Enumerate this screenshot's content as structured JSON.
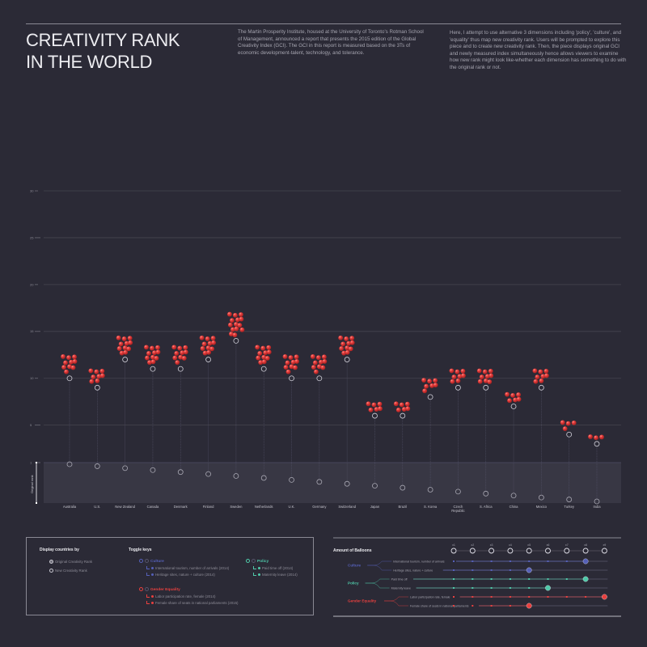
{
  "header": {
    "title_line1": "CREATIVITY RANK",
    "title_line2": "IN THE WORLD",
    "intro_left": "The Martin Prosperity Institute, housed at the University of Toronto's Rotman School of Management, announced a report that presents the 2015 edition of the Global Creativity Index (GCI). The GCI in this report is measured based on the 3Ts of economic development-talent, technology, and tolerance.",
    "intro_right": "Here, I attempt to use alternative 3 dimensions including 'policy', 'culture', and 'equality' thus map new creativity rank. Users will be prompted to explore this piece and to create new creativity rank. Then, the piece displays original GCI and newly measured index simultaneously hence allows viewers to examine how new rank might look like-whether each dimension has something to do with the original rank or not."
  },
  "colors": {
    "background": "#2b2a36",
    "balloon": "#e8403f",
    "culture": "#5560b8",
    "policy": "#4fc9a9",
    "equality": "#e8403f",
    "band": "#383744"
  },
  "chart_data": {
    "type": "scatter",
    "title": "Creativity Rank in the World",
    "ylabel_band": "Original rank",
    "y_ticks": [
      30,
      25,
      20,
      15,
      10,
      5,
      1
    ],
    "ylim": [
      1,
      30
    ],
    "original_rank_range": [
      1,
      20
    ],
    "categories": [
      "Australia",
      "U.S.",
      "New Zealand",
      "Canada",
      "Denmark",
      "Finland",
      "Sweden",
      "Netherlands",
      "U.K.",
      "Germany",
      "Switzerland",
      "Japan",
      "Brazil",
      "S. Korea",
      "Czech Republic",
      "S. Africa",
      "China",
      "Mexico",
      "Turkey",
      "India"
    ],
    "series": [
      {
        "name": "New Creativity Rank (index)",
        "values": [
          10,
          9,
          12,
          11,
          11,
          12,
          14,
          11,
          10,
          10,
          12,
          6,
          6,
          8,
          9,
          9,
          7,
          9,
          4,
          3
        ]
      },
      {
        "name": "Balloons",
        "values": [
          10,
          8,
          11,
          11,
          10,
          11,
          14,
          11,
          10,
          10,
          11,
          6,
          6,
          7,
          8,
          9,
          6,
          8,
          4,
          3
        ]
      },
      {
        "name": "Original Creativity Rank",
        "values": [
          1,
          2,
          3,
          4,
          5,
          6,
          7,
          8,
          9,
          10,
          11,
          12,
          13,
          14,
          15,
          16,
          17,
          18,
          19,
          20
        ]
      }
    ]
  },
  "legend": {
    "display_heading": "Display countries by",
    "display_options": [
      {
        "label": "Original Creativity Rank",
        "selected": true
      },
      {
        "label": "New Creativity Rank",
        "selected": false
      }
    ],
    "toggle_heading": "Toggle keys",
    "groups": [
      {
        "name": "Culture",
        "color": "#5560b8",
        "items": [
          "International tourism, number of arrivals (2014)",
          "Heritage sites, nature + culture (2014)"
        ]
      },
      {
        "name": "Policy",
        "color": "#4fc9a9",
        "items": [
          "Paid time off (2014)",
          "Maternity leave (2014)"
        ]
      },
      {
        "name": "Gender Equality",
        "color": "#e8403f",
        "items": [
          "Labor participation rate, female (2014)",
          "Female share of seats in national parliaments (2015)"
        ]
      }
    ]
  },
  "amount": {
    "heading": "Amount of Balloons",
    "multipliers": [
      "x1",
      "x2",
      "x3",
      "x4",
      "x5",
      "x6",
      "x7",
      "x8",
      "x9"
    ],
    "groups": [
      {
        "name": "Culture",
        "color": "#5560b8",
        "items": [
          {
            "label": "International tourism, number of arrivals",
            "value": 8
          },
          {
            "label": "Heritage sites, nature + culture",
            "value": 5
          }
        ]
      },
      {
        "name": "Policy",
        "color": "#4fc9a9",
        "items": [
          {
            "label": "Paid time off",
            "value": 8
          },
          {
            "label": "Maternity leave",
            "value": 6
          }
        ]
      },
      {
        "name": "Gender Equality",
        "color": "#e8403f",
        "items": [
          {
            "label": "Labor participation rate, female",
            "value": 9
          },
          {
            "label": "Female share of seats in national parliaments",
            "value": 5
          }
        ]
      }
    ]
  }
}
